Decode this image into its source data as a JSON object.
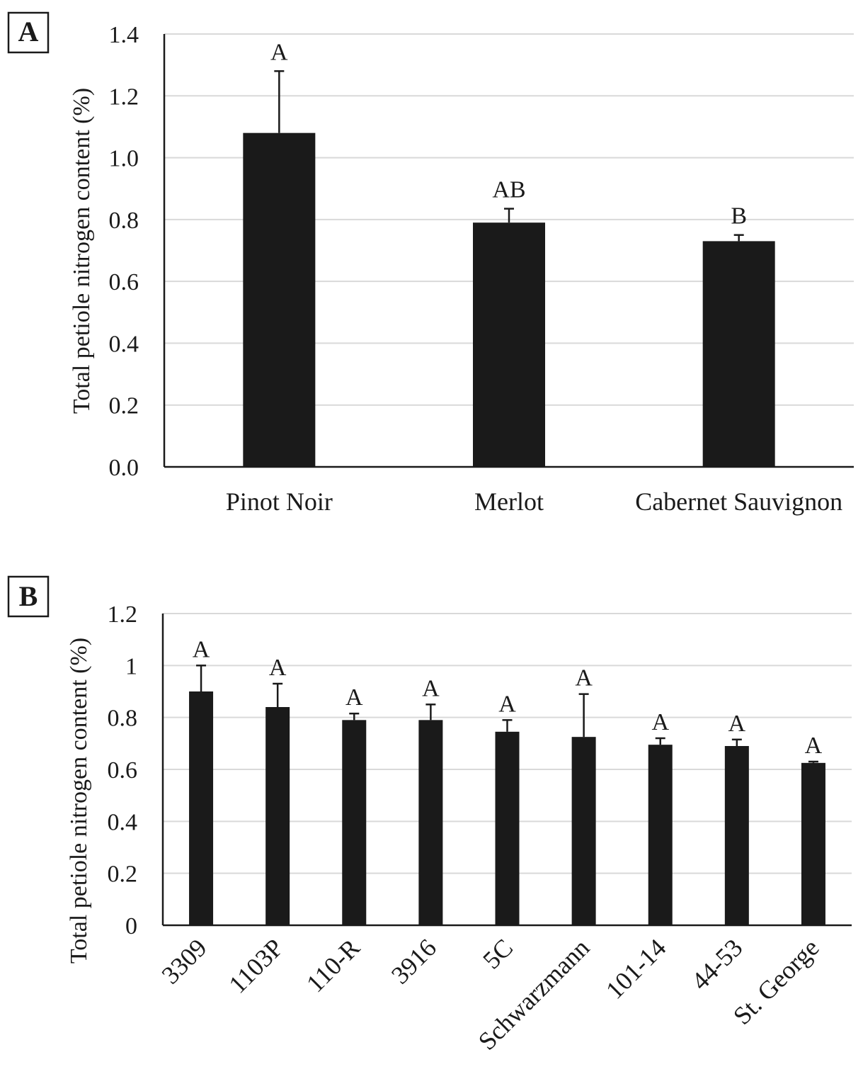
{
  "chart_data": [
    {
      "type": "bar",
      "panel_label": "A",
      "ylabel": "Total petiole nitrogen content (%)",
      "xlabel": "",
      "ylim": [
        0,
        1.4
      ],
      "yticks": [
        "0.0",
        "0.2",
        "0.4",
        "0.6",
        "0.8",
        "1.0",
        "1.2",
        "1.4"
      ],
      "categories": [
        "Pinot Noir",
        "Merlot",
        "Cabernet Sauvignon"
      ],
      "values": [
        1.08,
        0.79,
        0.73
      ],
      "errors": [
        0.2,
        0.045,
        0.02
      ],
      "significance": [
        "A",
        "AB",
        "B"
      ],
      "grid": true,
      "bar_color": "#1a1a1a"
    },
    {
      "type": "bar",
      "panel_label": "B",
      "ylabel": "Total petiole nitrogen content (%)",
      "xlabel": "",
      "ylim": [
        0,
        1.2
      ],
      "yticks": [
        "0",
        "0.2",
        "0.4",
        "0.6",
        "0.8",
        "1",
        "1.2"
      ],
      "categories": [
        "3309",
        "1103P",
        "110-R",
        "3916",
        "5C",
        "Schwarzmann",
        "101-14",
        "44-53",
        "St. George"
      ],
      "values": [
        0.9,
        0.84,
        0.79,
        0.79,
        0.745,
        0.725,
        0.695,
        0.69,
        0.625
      ],
      "errors": [
        0.1,
        0.09,
        0.025,
        0.06,
        0.045,
        0.165,
        0.025,
        0.025,
        0.005
      ],
      "significance": [
        "A",
        "A",
        "A",
        "A",
        "A",
        "A",
        "A",
        "A",
        "A"
      ],
      "grid": true,
      "bar_color": "#1a1a1a"
    }
  ]
}
